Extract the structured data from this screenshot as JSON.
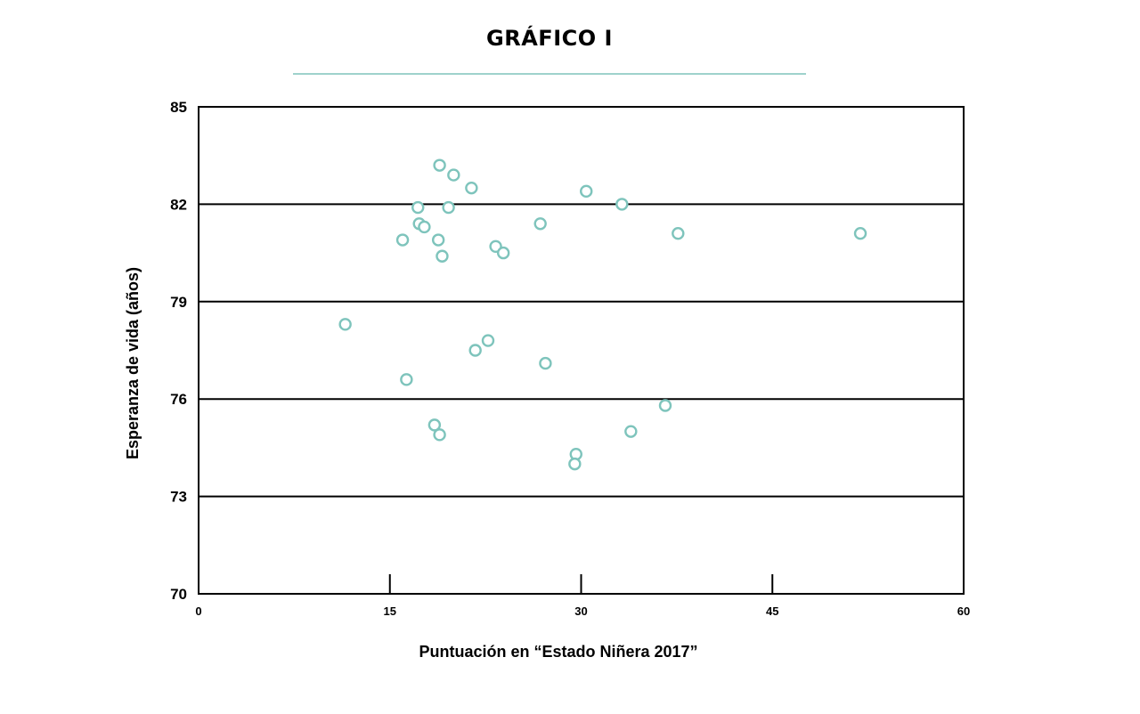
{
  "chart_data": {
    "type": "scatter",
    "title": "GRÁFICO I",
    "xlabel": "Puntuación en “Estado Niñera 2017”",
    "ylabel": "Esperanza de vida (años)",
    "xlim": [
      0,
      60
    ],
    "ylim": [
      70,
      85
    ],
    "x_ticks": [
      0,
      15,
      30,
      45,
      60
    ],
    "x_tick_labels": [
      "0",
      "15",
      "30",
      "45",
      "60"
    ],
    "y_ticks": [
      70,
      73,
      76,
      79,
      82,
      85
    ],
    "y_tick_labels": [
      "70",
      "73",
      "76",
      "79",
      "82",
      "85"
    ],
    "grid": "horizontal",
    "marker": "hollow-circle",
    "colors": {
      "accent": "#7ec4bc",
      "title_rule": "#7ec4bc",
      "axis": "#000000"
    },
    "series": [
      {
        "points": [
          {
            "x": 18.9,
            "y": 83.2
          },
          {
            "x": 20.0,
            "y": 82.9
          },
          {
            "x": 21.4,
            "y": 82.5
          },
          {
            "x": 30.4,
            "y": 82.4
          },
          {
            "x": 33.2,
            "y": 82.0
          },
          {
            "x": 17.2,
            "y": 81.9
          },
          {
            "x": 19.6,
            "y": 81.9
          },
          {
            "x": 17.3,
            "y": 81.4
          },
          {
            "x": 17.7,
            "y": 81.3
          },
          {
            "x": 26.8,
            "y": 81.4
          },
          {
            "x": 37.6,
            "y": 81.1
          },
          {
            "x": 51.9,
            "y": 81.1
          },
          {
            "x": 16.0,
            "y": 80.9
          },
          {
            "x": 18.8,
            "y": 80.9
          },
          {
            "x": 23.3,
            "y": 80.7
          },
          {
            "x": 23.9,
            "y": 80.5
          },
          {
            "x": 19.1,
            "y": 80.4
          },
          {
            "x": 11.5,
            "y": 78.3
          },
          {
            "x": 22.7,
            "y": 77.8
          },
          {
            "x": 21.7,
            "y": 77.5
          },
          {
            "x": 27.2,
            "y": 77.1
          },
          {
            "x": 16.3,
            "y": 76.6
          },
          {
            "x": 36.6,
            "y": 75.8
          },
          {
            "x": 18.5,
            "y": 75.2
          },
          {
            "x": 18.9,
            "y": 74.9
          },
          {
            "x": 33.9,
            "y": 75.0
          },
          {
            "x": 29.6,
            "y": 74.3
          },
          {
            "x": 29.5,
            "y": 74.0
          }
        ]
      }
    ]
  }
}
